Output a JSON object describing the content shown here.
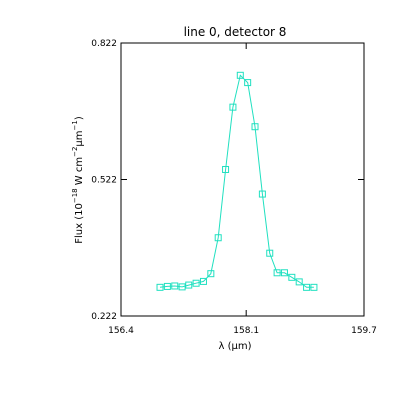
{
  "chart_data": {
    "type": "line",
    "title": "line 0, detector 8",
    "xlabel": {
      "prefix": "λ (",
      "mu": "μ",
      "suffix": "m)"
    },
    "ylabel": {
      "a": "Flux (10",
      "e1": "−18",
      "b": " W cm",
      "e2": "−2",
      "mu": "μ",
      "c": "m",
      "e3": "−1",
      "d": ")"
    },
    "xlim": [
      156.4,
      159.7
    ],
    "ylim": [
      0.222,
      0.822
    ],
    "x_ticks": [
      {
        "value": 156.4,
        "label": "156.4"
      },
      {
        "value": 158.1,
        "label": "158.1"
      },
      {
        "value": 159.7,
        "label": "159.7"
      }
    ],
    "y_ticks": [
      {
        "value": 0.222,
        "label": "0.222"
      },
      {
        "value": 0.522,
        "label": "0.522"
      },
      {
        "value": 0.822,
        "label": "0.822"
      }
    ],
    "series": [
      {
        "color": "#20e0c0",
        "marker": "square",
        "x": [
          156.93,
          157.03,
          157.13,
          157.23,
          157.32,
          157.42,
          157.52,
          157.62,
          157.72,
          157.82,
          157.92,
          158.02,
          158.12,
          158.22,
          158.32,
          158.42,
          158.52,
          158.62,
          158.72,
          158.82,
          158.92,
          159.02
        ],
        "y": [
          0.285,
          0.287,
          0.288,
          0.286,
          0.29,
          0.294,
          0.298,
          0.315,
          0.394,
          0.544,
          0.681,
          0.751,
          0.735,
          0.638,
          0.49,
          0.36,
          0.317,
          0.317,
          0.307,
          0.297,
          0.285,
          0.285
        ]
      }
    ]
  }
}
